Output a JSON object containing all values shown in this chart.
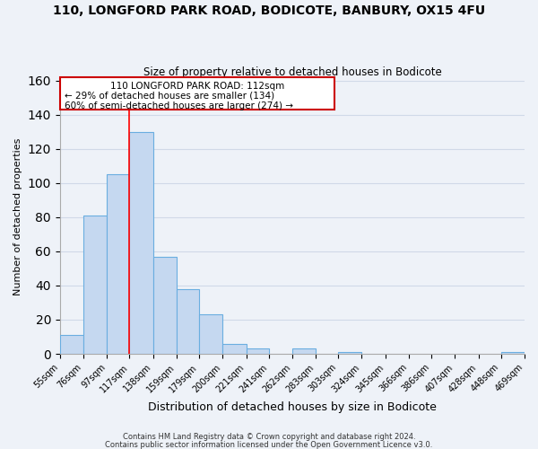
{
  "title": "110, LONGFORD PARK ROAD, BODICOTE, BANBURY, OX15 4FU",
  "subtitle": "Size of property relative to detached houses in Bodicote",
  "xlabel": "Distribution of detached houses by size in Bodicote",
  "ylabel": "Number of detached properties",
  "bar_edges": [
    55,
    76,
    97,
    117,
    138,
    159,
    179,
    200,
    221,
    241,
    262,
    283,
    303,
    324,
    345,
    366,
    386,
    407,
    428,
    448,
    469
  ],
  "bar_heights": [
    11,
    81,
    105,
    130,
    57,
    38,
    23,
    6,
    3,
    0,
    3,
    0,
    1,
    0,
    0,
    0,
    0,
    0,
    0,
    1
  ],
  "bar_color": "#c5d8f0",
  "bar_edge_color": "#6aaee0",
  "ylim": [
    0,
    160
  ],
  "yticks": [
    0,
    20,
    40,
    60,
    80,
    100,
    120,
    140,
    160
  ],
  "tick_labels": [
    "55sqm",
    "76sqm",
    "97sqm",
    "117sqm",
    "138sqm",
    "159sqm",
    "179sqm",
    "200sqm",
    "221sqm",
    "241sqm",
    "262sqm",
    "283sqm",
    "303sqm",
    "324sqm",
    "345sqm",
    "366sqm",
    "386sqm",
    "407sqm",
    "428sqm",
    "448sqm",
    "469sqm"
  ],
  "property_line_x": 117,
  "annotation_line1": "110 LONGFORD PARK ROAD: 112sqm",
  "annotation_line2": "← 29% of detached houses are smaller (134)",
  "annotation_line3": "60% of semi-detached houses are larger (274) →",
  "footer1": "Contains HM Land Registry data © Crown copyright and database right 2024.",
  "footer2": "Contains public sector information licensed under the Open Government Licence v3.0.",
  "grid_color": "#d0d9e8",
  "background_color": "#eef2f8"
}
